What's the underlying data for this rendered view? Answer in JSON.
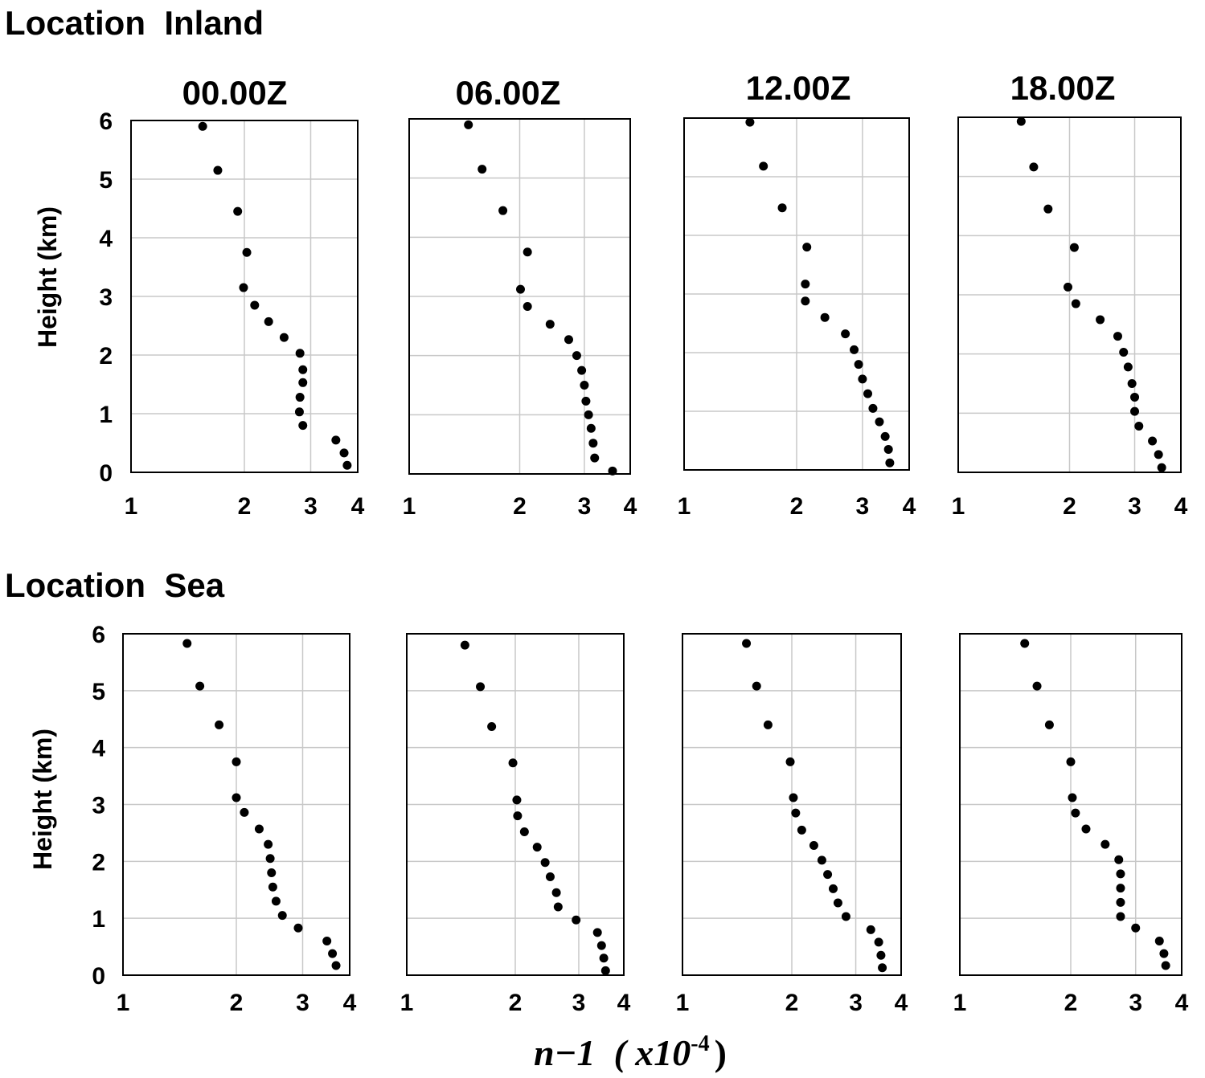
{
  "sections": [
    {
      "title": "Location  Inland"
    },
    {
      "title": "Location  Sea"
    }
  ],
  "panel_titles": [
    "00.00Z",
    "06.00Z",
    "12.00Z",
    "18.00Z"
  ],
  "ylabel": "Height (km)",
  "xlabel": {
    "main": "n−1  ( x10",
    "exp": "-4",
    "close": ")"
  },
  "chart_data": [
    {
      "type": "scatter",
      "title": "00.00Z",
      "location": "Inland",
      "xlim": [
        1,
        4
      ],
      "ylim": [
        0,
        6
      ],
      "x_log_scale": true,
      "xticks": [
        "1",
        "2",
        "3",
        "4"
      ],
      "yticks": [
        "0",
        "1",
        "2",
        "3",
        "4",
        "5",
        "6"
      ],
      "grid": true,
      "points": [
        [
          1.55,
          5.9
        ],
        [
          1.7,
          5.15
        ],
        [
          1.92,
          4.45
        ],
        [
          2.03,
          3.75
        ],
        [
          1.99,
          3.15
        ],
        [
          2.13,
          2.85
        ],
        [
          2.32,
          2.57
        ],
        [
          2.55,
          2.3
        ],
        [
          2.81,
          2.03
        ],
        [
          2.86,
          1.75
        ],
        [
          2.86,
          1.53
        ],
        [
          2.81,
          1.28
        ],
        [
          2.8,
          1.03
        ],
        [
          2.86,
          0.8
        ],
        [
          3.5,
          0.55
        ],
        [
          3.68,
          0.33
        ],
        [
          3.75,
          0.12
        ]
      ]
    },
    {
      "type": "scatter",
      "title": "06.00Z",
      "location": "Inland",
      "xlim": [
        1,
        4
      ],
      "ylim": [
        0,
        6
      ],
      "x_log_scale": true,
      "xticks": [
        "1",
        "2",
        "3",
        "4"
      ],
      "yticks": [
        "0",
        "1",
        "2",
        "3",
        "4",
        "5",
        "6"
      ],
      "grid": true,
      "points": [
        [
          1.45,
          5.9
        ],
        [
          1.58,
          5.15
        ],
        [
          1.8,
          4.45
        ],
        [
          2.1,
          3.75
        ],
        [
          2.01,
          3.12
        ],
        [
          2.1,
          2.83
        ],
        [
          2.42,
          2.53
        ],
        [
          2.72,
          2.27
        ],
        [
          2.86,
          2.0
        ],
        [
          2.95,
          1.75
        ],
        [
          3.0,
          1.5
        ],
        [
          3.03,
          1.23
        ],
        [
          3.08,
          1.0
        ],
        [
          3.13,
          0.77
        ],
        [
          3.17,
          0.52
        ],
        [
          3.2,
          0.27
        ],
        [
          3.58,
          0.05
        ]
      ]
    },
    {
      "type": "scatter",
      "title": "12.00Z",
      "location": "Inland",
      "xlim": [
        1,
        4
      ],
      "ylim": [
        0,
        6
      ],
      "x_log_scale": true,
      "xticks": [
        "1",
        "2",
        "3",
        "4"
      ],
      "yticks": [
        "0",
        "1",
        "2",
        "3",
        "4",
        "5",
        "6"
      ],
      "grid": true,
      "points": [
        [
          1.5,
          5.93
        ],
        [
          1.63,
          5.18
        ],
        [
          1.83,
          4.47
        ],
        [
          2.13,
          3.8
        ],
        [
          2.11,
          3.17
        ],
        [
          2.11,
          2.88
        ],
        [
          2.38,
          2.6
        ],
        [
          2.7,
          2.32
        ],
        [
          2.85,
          2.05
        ],
        [
          2.93,
          1.8
        ],
        [
          3.0,
          1.55
        ],
        [
          3.1,
          1.3
        ],
        [
          3.2,
          1.05
        ],
        [
          3.33,
          0.82
        ],
        [
          3.45,
          0.57
        ],
        [
          3.52,
          0.35
        ],
        [
          3.55,
          0.12
        ]
      ]
    },
    {
      "type": "scatter",
      "title": "18.00Z",
      "location": "Inland",
      "xlim": [
        1,
        4
      ],
      "ylim": [
        0,
        6
      ],
      "x_log_scale": true,
      "xticks": [
        "1",
        "2",
        "3",
        "4"
      ],
      "yticks": [
        "0",
        "1",
        "2",
        "3",
        "4",
        "5",
        "6"
      ],
      "grid": true,
      "points": [
        [
          1.48,
          5.93
        ],
        [
          1.6,
          5.16
        ],
        [
          1.75,
          4.45
        ],
        [
          2.06,
          3.8
        ],
        [
          1.98,
          3.13
        ],
        [
          2.08,
          2.85
        ],
        [
          2.42,
          2.58
        ],
        [
          2.7,
          2.3
        ],
        [
          2.8,
          2.03
        ],
        [
          2.88,
          1.78
        ],
        [
          2.95,
          1.5
        ],
        [
          3.0,
          1.27
        ],
        [
          3.0,
          1.03
        ],
        [
          3.08,
          0.78
        ],
        [
          3.35,
          0.53
        ],
        [
          3.48,
          0.3
        ],
        [
          3.55,
          0.08
        ]
      ]
    },
    {
      "type": "scatter",
      "title": "00.00Z",
      "location": "Sea",
      "xlim": [
        1,
        4
      ],
      "ylim": [
        0,
        6
      ],
      "x_log_scale": true,
      "xticks": [
        "1",
        "2",
        "3",
        "4"
      ],
      "yticks": [
        "0",
        "1",
        "2",
        "3",
        "4",
        "5",
        "6"
      ],
      "grid": true,
      "points": [
        [
          1.48,
          5.83
        ],
        [
          1.6,
          5.08
        ],
        [
          1.8,
          4.4
        ],
        [
          2.0,
          3.75
        ],
        [
          2.0,
          3.12
        ],
        [
          2.1,
          2.86
        ],
        [
          2.3,
          2.57
        ],
        [
          2.43,
          2.3
        ],
        [
          2.46,
          2.05
        ],
        [
          2.48,
          1.8
        ],
        [
          2.5,
          1.55
        ],
        [
          2.55,
          1.3
        ],
        [
          2.65,
          1.05
        ],
        [
          2.92,
          0.83
        ],
        [
          3.48,
          0.6
        ],
        [
          3.6,
          0.38
        ],
        [
          3.68,
          0.17
        ]
      ]
    },
    {
      "type": "scatter",
      "title": "06.00Z",
      "location": "Sea",
      "xlim": [
        1,
        4
      ],
      "ylim": [
        0,
        6
      ],
      "x_log_scale": true,
      "xticks": [
        "1",
        "2",
        "3",
        "4"
      ],
      "yticks": [
        "0",
        "1",
        "2",
        "3",
        "4",
        "5",
        "6"
      ],
      "grid": true,
      "points": [
        [
          1.45,
          5.8
        ],
        [
          1.6,
          5.07
        ],
        [
          1.72,
          4.37
        ],
        [
          1.97,
          3.73
        ],
        [
          2.02,
          3.08
        ],
        [
          2.03,
          2.8
        ],
        [
          2.12,
          2.52
        ],
        [
          2.3,
          2.25
        ],
        [
          2.42,
          1.98
        ],
        [
          2.5,
          1.73
        ],
        [
          2.6,
          1.45
        ],
        [
          2.63,
          1.2
        ],
        [
          2.95,
          0.97
        ],
        [
          3.38,
          0.75
        ],
        [
          3.47,
          0.52
        ],
        [
          3.52,
          0.3
        ],
        [
          3.56,
          0.08
        ]
      ]
    },
    {
      "type": "scatter",
      "title": "12.00Z",
      "location": "Sea",
      "xlim": [
        1,
        4
      ],
      "ylim": [
        0,
        6
      ],
      "x_log_scale": true,
      "xticks": [
        "1",
        "2",
        "3",
        "4"
      ],
      "yticks": [
        "0",
        "1",
        "2",
        "3",
        "4",
        "5",
        "6"
      ],
      "grid": true,
      "points": [
        [
          1.5,
          5.83
        ],
        [
          1.6,
          5.08
        ],
        [
          1.72,
          4.4
        ],
        [
          1.98,
          3.75
        ],
        [
          2.02,
          3.12
        ],
        [
          2.05,
          2.85
        ],
        [
          2.13,
          2.55
        ],
        [
          2.3,
          2.28
        ],
        [
          2.42,
          2.02
        ],
        [
          2.51,
          1.77
        ],
        [
          2.6,
          1.52
        ],
        [
          2.68,
          1.27
        ],
        [
          2.82,
          1.03
        ],
        [
          3.3,
          0.8
        ],
        [
          3.47,
          0.58
        ],
        [
          3.52,
          0.35
        ],
        [
          3.55,
          0.13
        ]
      ]
    },
    {
      "type": "scatter",
      "title": "18.00Z",
      "location": "Sea",
      "xlim": [
        1,
        4
      ],
      "ylim": [
        0,
        6
      ],
      "x_log_scale": true,
      "xticks": [
        "1",
        "2",
        "3",
        "4"
      ],
      "yticks": [
        "0",
        "1",
        "2",
        "3",
        "4",
        "5",
        "6"
      ],
      "grid": true,
      "points": [
        [
          1.5,
          5.83
        ],
        [
          1.62,
          5.08
        ],
        [
          1.75,
          4.4
        ],
        [
          2.0,
          3.75
        ],
        [
          2.02,
          3.12
        ],
        [
          2.06,
          2.85
        ],
        [
          2.2,
          2.57
        ],
        [
          2.48,
          2.3
        ],
        [
          2.7,
          2.03
        ],
        [
          2.73,
          1.78
        ],
        [
          2.73,
          1.53
        ],
        [
          2.73,
          1.28
        ],
        [
          2.73,
          1.03
        ],
        [
          3.0,
          0.83
        ],
        [
          3.48,
          0.6
        ],
        [
          3.58,
          0.38
        ],
        [
          3.62,
          0.17
        ]
      ]
    }
  ]
}
